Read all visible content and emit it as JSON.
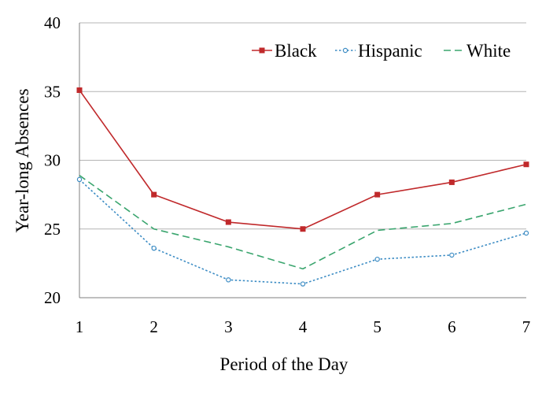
{
  "chart_data": {
    "type": "line",
    "title": "",
    "xlabel": "Period of the Day",
    "ylabel": "Year-long Absences",
    "x": [
      1,
      2,
      3,
      4,
      5,
      6,
      7
    ],
    "x_tick_labels": [
      "1",
      "2",
      "3",
      "4",
      "5",
      "6",
      "7"
    ],
    "y_ticks": [
      20,
      25,
      30,
      35,
      40
    ],
    "y_tick_labels": [
      "20",
      "25",
      "30",
      "35",
      "40"
    ],
    "xlim": [
      1,
      7
    ],
    "ylim": [
      20,
      40
    ],
    "grid": "horizontal",
    "legend_position": "top-right",
    "series": [
      {
        "name": "Black",
        "color": "#c0292b",
        "line_style": "solid",
        "marker": "square",
        "values": [
          35.1,
          27.5,
          25.5,
          25.0,
          27.5,
          28.4,
          29.7
        ]
      },
      {
        "name": "Hispanic",
        "color": "#3c8cc4",
        "line_style": "dotted",
        "marker": "circle",
        "values": [
          28.6,
          23.6,
          21.3,
          21.0,
          22.8,
          23.1,
          24.7
        ]
      },
      {
        "name": "White",
        "color": "#3aa56e",
        "line_style": "dashed",
        "marker": "none",
        "values": [
          28.9,
          25.0,
          23.7,
          22.1,
          24.9,
          25.4,
          26.8
        ]
      }
    ]
  },
  "colors": {
    "gridline": "#b4b4b4",
    "axis": "#7f7f7f"
  }
}
